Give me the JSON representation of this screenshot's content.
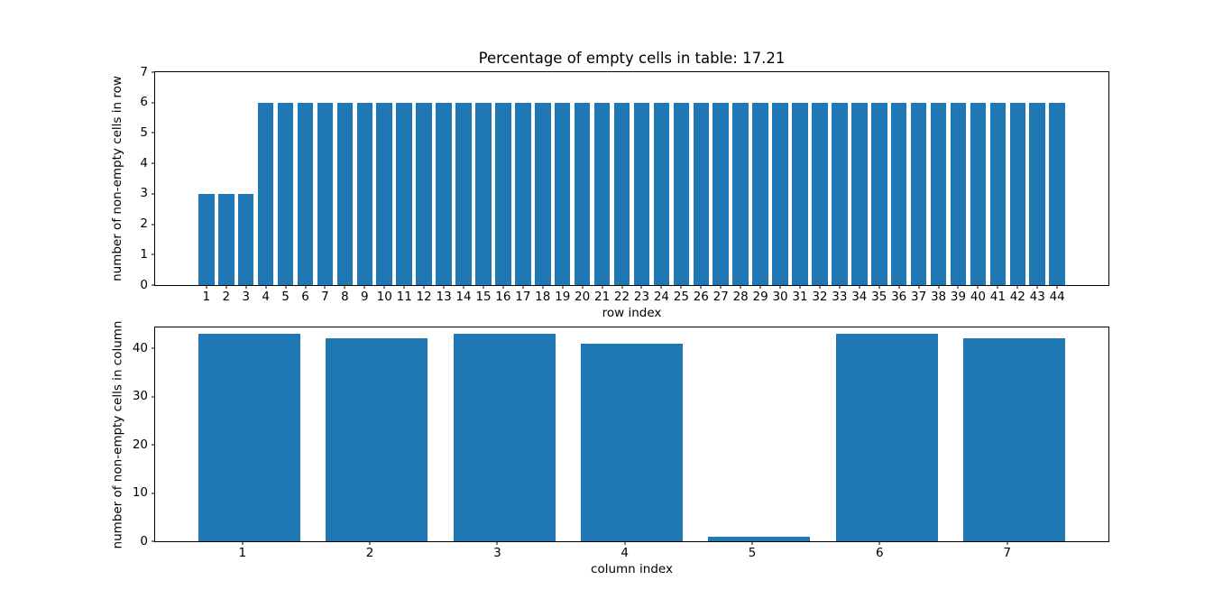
{
  "figure": {
    "background": "#ffffff",
    "text_color": "#000000",
    "spine_color": "#000000"
  },
  "chart_data": [
    {
      "type": "bar",
      "title": "Percentage of empty cells in table: 17.21",
      "xlabel": "row index",
      "ylabel": "number of non-empty cells in row",
      "categories": [
        "1",
        "2",
        "3",
        "4",
        "5",
        "6",
        "7",
        "8",
        "9",
        "10",
        "11",
        "12",
        "13",
        "14",
        "15",
        "16",
        "17",
        "18",
        "19",
        "20",
        "21",
        "22",
        "23",
        "24",
        "25",
        "26",
        "27",
        "28",
        "29",
        "30",
        "31",
        "32",
        "33",
        "34",
        "35",
        "36",
        "37",
        "38",
        "39",
        "40",
        "41",
        "42",
        "43",
        "44"
      ],
      "values": [
        3,
        3,
        3,
        6,
        6,
        6,
        6,
        6,
        6,
        6,
        6,
        6,
        6,
        6,
        6,
        6,
        6,
        6,
        6,
        6,
        6,
        6,
        6,
        6,
        6,
        6,
        6,
        6,
        6,
        6,
        6,
        6,
        6,
        6,
        6,
        6,
        6,
        6,
        6,
        6,
        6,
        6,
        6,
        6
      ],
      "ylim": [
        0,
        7
      ],
      "yticks": [
        0,
        1,
        2,
        3,
        4,
        5,
        6,
        7
      ],
      "xlim": [
        -1.59,
        46.59
      ],
      "bar_width": 0.8,
      "bar_offset": 0,
      "bar_color": "#1f77b4",
      "grid": false,
      "legend_position": "none"
    },
    {
      "type": "bar",
      "title": "",
      "xlabel": "column index",
      "ylabel": "number of non-empty cells in column",
      "categories": [
        "1",
        "2",
        "3",
        "4",
        "5",
        "6",
        "7"
      ],
      "values": [
        43,
        42,
        43,
        41,
        1,
        43,
        42
      ],
      "ylim": [
        0,
        44.3
      ],
      "yticks": [
        0,
        10,
        20,
        30,
        40
      ],
      "xlim": [
        0.315,
        7.795
      ],
      "bar_width": 0.8,
      "bar_offset": 0.055,
      "bar_color": "#1f77b4",
      "grid": false,
      "legend_position": "none"
    }
  ]
}
